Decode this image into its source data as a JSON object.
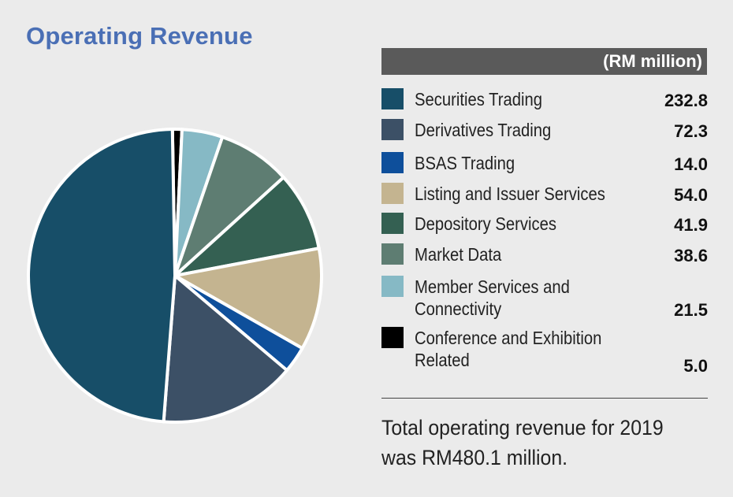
{
  "title": "Operating Revenue",
  "table_header": "(RM million)",
  "footnote": {
    "line1": "Total operating revenue for 2019",
    "line2": "was RM480.1 million."
  },
  "chart_data": {
    "type": "pie",
    "title": "Operating Revenue",
    "unit": "(RM million)",
    "start_angle_deg": -1,
    "slices": [
      {
        "label": "Securities Trading",
        "value": 232.8,
        "display": "232.8",
        "color": "#174e68"
      },
      {
        "label": "Derivatives Trading",
        "value": 72.3,
        "display": "72.3",
        "color": "#3c5066"
      },
      {
        "label": "BSAS Trading",
        "value": 14.0,
        "display": "14.0",
        "color": "#0e4f9b"
      },
      {
        "label": "Listing and Issuer Services",
        "value": 54.0,
        "display": "54.0",
        "color": "#c4b490"
      },
      {
        "label": "Depository Services",
        "value": 41.9,
        "display": "41.9",
        "color": "#346052"
      },
      {
        "label": "Market Data",
        "value": 38.6,
        "display": "38.6",
        "color": "#5e7d72"
      },
      {
        "label": "Member Services and Connectivity",
        "display_label_lines": [
          "Member Services and",
          "Connectivity"
        ],
        "value": 21.5,
        "display": "21.5",
        "color": "#86b9c5"
      },
      {
        "label": "Conference and Exhibition Related",
        "display_label_lines": [
          "Conference and Exhibition",
          "Related"
        ],
        "value": 5.0,
        "display": "5.0",
        "color": "#000000"
      }
    ],
    "total": 480.1
  }
}
